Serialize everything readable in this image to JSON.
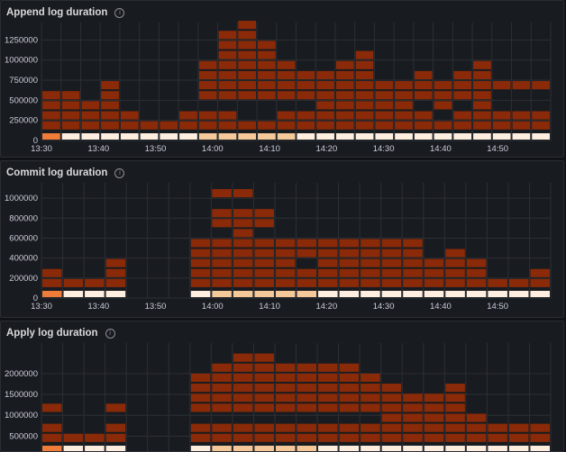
{
  "panels": [
    {
      "title": "Append log duration",
      "info_icon": "info-circle-icon",
      "chart_data": {
        "type": "heatmap",
        "x_ticks": [
          "13:30",
          "13:40",
          "13:50",
          "14:00",
          "14:10",
          "14:20",
          "14:30",
          "14:40",
          "14:50"
        ],
        "y_ticks": [
          0,
          250000,
          500000,
          750000,
          1000000,
          1250000
        ],
        "y_tick_labels": [
          "0",
          "250000",
          "500000",
          "750000",
          "1000000",
          "1250000"
        ],
        "ylim": [
          0,
          1400000
        ],
        "bucket_size": 125000,
        "columns": [
          [
            0,
            1,
            2,
            3,
            4
          ],
          [
            0,
            1,
            2,
            3,
            4
          ],
          [
            0,
            1,
            2,
            3
          ],
          [
            0,
            1,
            2,
            3,
            4,
            5
          ],
          [
            0,
            1,
            2
          ],
          [
            0,
            1
          ],
          [
            0,
            1
          ],
          [
            0,
            1,
            2
          ],
          [
            0,
            1,
            2,
            4,
            5,
            6,
            7
          ],
          [
            0,
            1,
            2,
            4,
            5,
            6,
            7,
            8,
            9,
            10
          ],
          [
            0,
            1,
            4,
            5,
            6,
            7,
            8,
            9,
            10,
            11
          ],
          [
            0,
            1,
            4,
            5,
            6,
            7,
            8,
            9
          ],
          [
            0,
            1,
            2,
            4,
            5,
            6,
            7
          ],
          [
            0,
            1,
            2,
            4,
            5,
            6
          ],
          [
            0,
            1,
            2,
            3,
            4,
            5,
            6
          ],
          [
            0,
            1,
            2,
            3,
            4,
            5,
            6,
            7
          ],
          [
            0,
            1,
            2,
            3,
            4,
            5,
            6,
            7,
            8
          ],
          [
            0,
            1,
            2,
            3,
            4,
            5
          ],
          [
            0,
            1,
            2,
            3,
            4,
            5
          ],
          [
            0,
            1,
            2,
            4,
            5,
            6
          ],
          [
            0,
            1,
            3,
            4,
            5
          ],
          [
            0,
            1,
            2,
            4,
            5,
            6
          ],
          [
            0,
            1,
            2,
            3,
            4,
            5,
            6,
            7
          ],
          [
            0,
            1,
            2,
            5
          ],
          [
            0,
            1,
            2,
            5
          ],
          [
            0,
            1,
            2,
            5
          ]
        ]
      }
    },
    {
      "title": "Commit log duration",
      "info_icon": "info-circle-icon",
      "chart_data": {
        "type": "heatmap",
        "x_ticks": [
          "13:30",
          "13:40",
          "13:50",
          "14:00",
          "14:10",
          "14:20",
          "14:30",
          "14:40",
          "14:50"
        ],
        "y_ticks": [
          0,
          200000,
          400000,
          600000,
          800000,
          1000000
        ],
        "y_tick_labels": [
          "0",
          "200000",
          "400000",
          "600000",
          "800000",
          "1000000"
        ],
        "ylim": [
          0,
          1100000
        ],
        "bucket_size": 100000,
        "columns": [
          [
            0,
            1,
            2
          ],
          [
            0,
            1
          ],
          [
            0,
            1
          ],
          [
            0,
            1,
            2,
            3
          ],
          [],
          [],
          [],
          [
            0,
            1,
            2,
            3,
            4,
            5
          ],
          [
            0,
            1,
            2,
            3,
            4,
            5,
            7,
            8,
            10
          ],
          [
            0,
            1,
            2,
            3,
            4,
            5,
            6,
            7,
            8,
            10
          ],
          [
            0,
            1,
            2,
            3,
            4,
            5,
            7,
            8
          ],
          [
            0,
            1,
            2,
            3,
            4,
            5
          ],
          [
            0,
            1,
            2,
            4,
            5
          ],
          [
            0,
            1,
            2,
            3,
            4,
            5
          ],
          [
            0,
            1,
            2,
            3,
            4,
            5
          ],
          [
            0,
            1,
            2,
            3,
            4,
            5
          ],
          [
            0,
            1,
            2,
            3,
            4,
            5
          ],
          [
            0,
            1,
            2,
            3,
            4,
            5
          ],
          [
            0,
            1,
            2,
            3
          ],
          [
            0,
            1,
            2,
            3,
            4
          ],
          [
            0,
            1,
            2,
            3
          ],
          [
            0,
            1
          ],
          [
            0,
            1
          ],
          [
            0,
            1,
            2
          ]
        ]
      }
    },
    {
      "title": "Apply log duration",
      "info_icon": "info-circle-icon",
      "chart_data": {
        "type": "heatmap",
        "x_ticks": [],
        "y_ticks": [
          500000,
          1000000,
          1500000,
          2000000
        ],
        "y_tick_labels": [
          "500000",
          "1000000",
          "1500000",
          "2000000"
        ],
        "ylim": [
          100000,
          2600000
        ],
        "bucket_size": 240000,
        "columns": [
          [
            0,
            1,
            2,
            4
          ],
          [
            0,
            1
          ],
          [
            0,
            1
          ],
          [
            0,
            1,
            2,
            4
          ],
          [],
          [],
          [],
          [
            0,
            1,
            2,
            4,
            5,
            6,
            7
          ],
          [
            0,
            1,
            2,
            4,
            5,
            6,
            7,
            8
          ],
          [
            0,
            1,
            2,
            4,
            5,
            6,
            7,
            8,
            9
          ],
          [
            0,
            1,
            2,
            4,
            5,
            6,
            7,
            8,
            9
          ],
          [
            0,
            1,
            2,
            4,
            5,
            6,
            7,
            8
          ],
          [
            0,
            1,
            2,
            4,
            5,
            6,
            7,
            8
          ],
          [
            0,
            1,
            2,
            4,
            5,
            6,
            7,
            8
          ],
          [
            0,
            1,
            2,
            4,
            5,
            6,
            7,
            8
          ],
          [
            0,
            1,
            2,
            4,
            5,
            6,
            7
          ],
          [
            0,
            1,
            2,
            3,
            4,
            5,
            6
          ],
          [
            0,
            1,
            2,
            3,
            4,
            5
          ],
          [
            0,
            1,
            2,
            3,
            4,
            5
          ],
          [
            0,
            1,
            2,
            3,
            4,
            5,
            6
          ],
          [
            0,
            1,
            2,
            3
          ],
          [
            0,
            1,
            2
          ],
          [
            0,
            1,
            2
          ],
          [
            0,
            1,
            2
          ]
        ]
      }
    }
  ],
  "colors": {
    "bucket_low": "#fdeee0",
    "bucket_mid": "#f5c89a",
    "bucket_hot": "#f07c3a",
    "bucket_high": "#8a2a08",
    "grid": "#2c2f35"
  }
}
